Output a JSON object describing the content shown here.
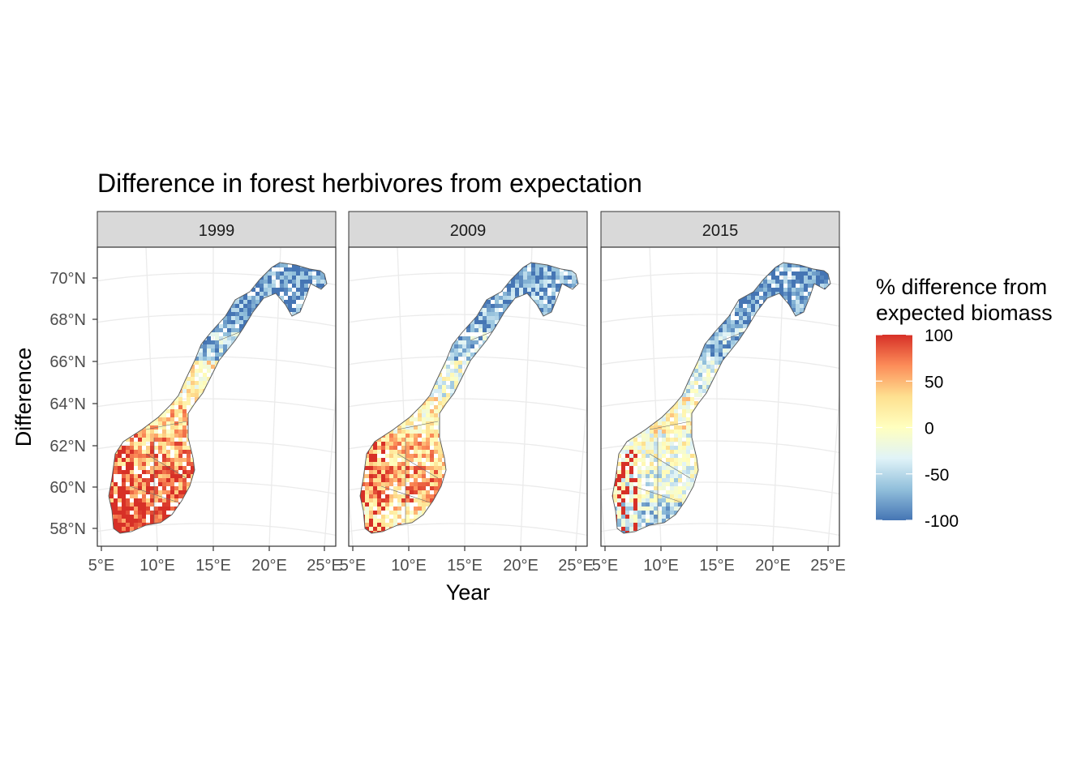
{
  "title": "Difference in forest herbivores from expectation",
  "xlabel": "Year",
  "ylabel": "Difference",
  "panels": [
    {
      "label": "1999",
      "profile": [
        0.95,
        0.8,
        0.55,
        0.35,
        0.05,
        -0.6,
        -0.85,
        -0.9
      ]
    },
    {
      "label": "2009",
      "profile": [
        0.25,
        0.55,
        0.4,
        0.1,
        -0.15,
        -0.55,
        -0.75,
        -0.8
      ]
    },
    {
      "label": "2015",
      "profile": [
        -0.45,
        -0.2,
        -0.1,
        0.05,
        -0.25,
        -0.65,
        -0.85,
        -0.9
      ]
    }
  ],
  "lat_ticks": [
    "58°N",
    "60°N",
    "62°N",
    "64°N",
    "66°N",
    "68°N",
    "70°N"
  ],
  "lon_ticks": [
    "5°E",
    "10°E",
    "15°E",
    "20°E",
    "25°E"
  ],
  "legend": {
    "title_line1": "% difference from",
    "title_line2": "expected biomass",
    "labels": [
      "100",
      "50",
      "0",
      "-50",
      "-100"
    ],
    "range": [
      -100,
      100
    ],
    "colors": [
      "#4575b4",
      "#91bfdb",
      "#e0f3f8",
      "#ffffbf",
      "#fee090",
      "#fc8d59",
      "#d73027"
    ]
  },
  "colors": {
    "strip_fill": "#d9d9d9",
    "grid": "#ebebeb",
    "outline": "#555555"
  }
}
